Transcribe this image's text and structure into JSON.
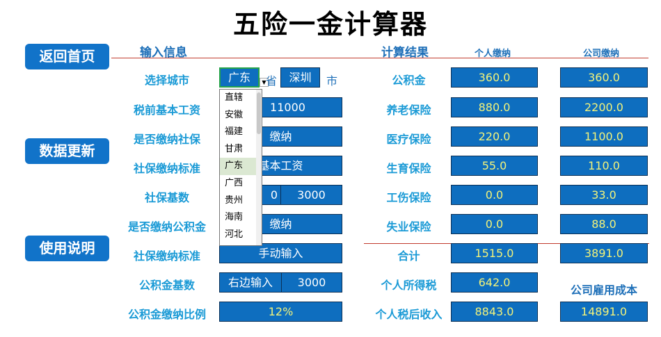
{
  "title": "五险一金计算器",
  "nav": {
    "home": "返回首页",
    "update": "数据更新",
    "help": "使用说明"
  },
  "input": {
    "section_title": "输入信息",
    "city_label": "选择城市",
    "province_value": "广东",
    "province_unit": "省",
    "city_value": "深圳",
    "city_unit": "市",
    "salary_label": "税前基本工资",
    "salary_value": "11000",
    "social_pay_label": "是否缴纳社保",
    "social_pay_value": "缴纳",
    "social_standard_label": "社保缴纳标准",
    "social_standard_value": "基本工资",
    "social_base_label": "社保基数",
    "social_base_left": "0",
    "social_base_value": "3000",
    "fund_pay_label": "是否缴纳公积金",
    "fund_pay_value": "缴纳",
    "fund_standard_label": "社保缴纳标准",
    "fund_standard_value": "手动输入",
    "fund_base_label": "公积金基数",
    "fund_base_left": "右边输入",
    "fund_base_value": "3000",
    "fund_ratio_label": "公积金缴纳比例",
    "fund_ratio_value": "12%"
  },
  "dropdown": {
    "items": [
      "直辖",
      "安徽",
      "福建",
      "甘肃",
      "广东",
      "广西",
      "贵州",
      "海南",
      "河北"
    ],
    "selected": "广东"
  },
  "result": {
    "section_title": "计算结果",
    "personal_head": "个人缴纳",
    "company_head": "公司缴纳",
    "rows": [
      {
        "label": "公积金",
        "personal": "360.0",
        "company": "360.0"
      },
      {
        "label": "养老保险",
        "personal": "880.0",
        "company": "2200.0"
      },
      {
        "label": "医疗保险",
        "personal": "220.0",
        "company": "1100.0"
      },
      {
        "label": "生育保险",
        "personal": "55.0",
        "company": "110.0"
      },
      {
        "label": "工伤保险",
        "personal": "0.0",
        "company": "33.0"
      },
      {
        "label": "失业保险",
        "personal": "0.0",
        "company": "88.0"
      },
      {
        "label": "合计",
        "personal": "1515.0",
        "company": "3891.0"
      }
    ],
    "tax_label": "个人所得税",
    "tax_value": "642.0",
    "cost_label": "公司雇用成本",
    "net_label": "个人税后收入",
    "net_value": "8843.0",
    "cost_value": "14891.0"
  }
}
